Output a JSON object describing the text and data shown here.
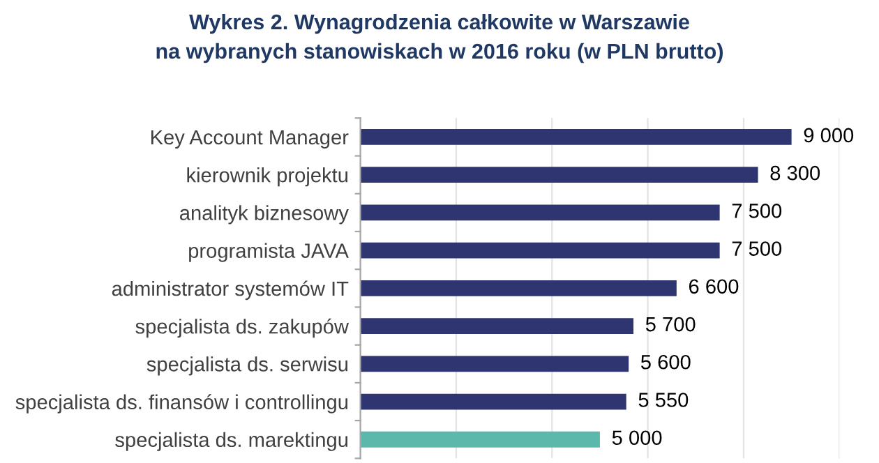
{
  "chart_data": {
    "type": "bar",
    "orientation": "horizontal",
    "title": "Wykres 2. Wynagrodzenia całkowite w Warszawie\nna wybranych stanowiskach w 2016 roku (w PLN brutto)",
    "categories": [
      "Key Account Manager",
      "kierownik projektu",
      "analityk biznesowy",
      "programista JAVA",
      "administrator systemów IT",
      "specjalista ds. zakupów",
      "specjalista ds. serwisu",
      "specjalista ds. finansów i controllingu",
      "specjalista ds. marektingu"
    ],
    "values": [
      9000,
      8300,
      7500,
      7500,
      6600,
      5700,
      5600,
      5550,
      5000
    ],
    "colors": [
      "#2e3570",
      "#2e3570",
      "#2e3570",
      "#2e3570",
      "#2e3570",
      "#2e3570",
      "#2e3570",
      "#2e3570",
      "#5cb8aa"
    ],
    "value_labels": [
      "9 000",
      "8 300",
      "7 500",
      "7 500",
      "6 600",
      "5 700",
      "5 600",
      "5 550",
      "5 000"
    ],
    "xlim": [
      0,
      10000
    ],
    "xticks": [
      {
        "value": 0,
        "label": null
      },
      {
        "value": 2000,
        "label": null
      },
      {
        "value": 4000,
        "label": null
      },
      {
        "value": 6000,
        "label": null
      },
      {
        "value": 8000,
        "label": null
      },
      {
        "value": 10000,
        "label": null
      }
    ],
    "grid": "x",
    "tick_labels": "y",
    "legend": false
  }
}
